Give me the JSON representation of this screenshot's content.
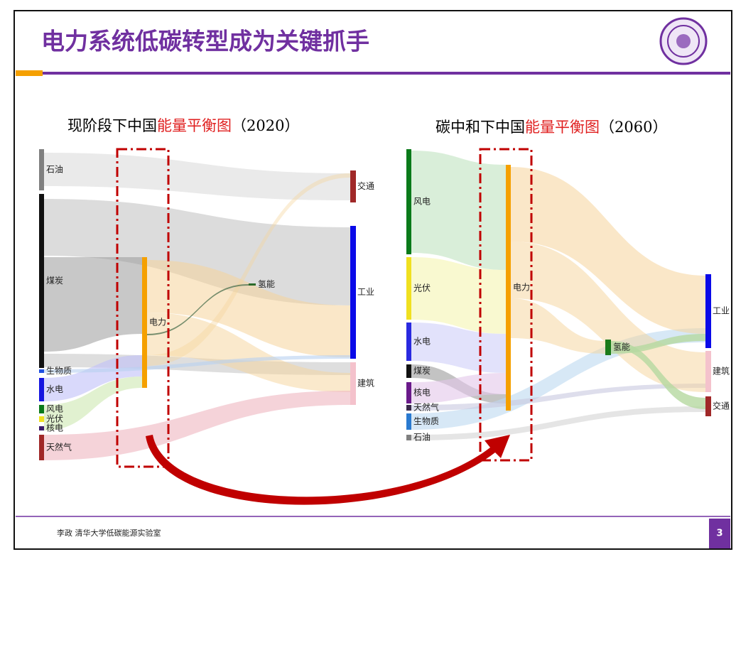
{
  "slide": {
    "title": "电力系统低碳转型成为关键抓手",
    "footer": "李政 清华大学低碳能源实验室",
    "page_number": "3"
  },
  "diagrams": [
    {
      "title": "现阶段下中国",
      "title_highlight": "能量平衡图",
      "title_year": "（2020）",
      "sources": [
        {
          "label": "石油",
          "color": "#808080"
        },
        {
          "label": "煤炭",
          "color": "#111111"
        },
        {
          "label": "生物质",
          "color": "#1f4fe0"
        },
        {
          "label": "水电",
          "color": "#1515e0"
        },
        {
          "label": "风电",
          "color": "#0a7a1a"
        },
        {
          "label": "光伏",
          "color": "#f0e020"
        },
        {
          "label": "核电",
          "color": "#3a1a6a"
        },
        {
          "label": "天然气",
          "color": "#a02828"
        }
      ],
      "middle": [
        {
          "label": "电力",
          "color": "#f5a000"
        },
        {
          "label": "氢能",
          "color": "#2a6a2a"
        }
      ],
      "sinks": [
        {
          "label": "交通",
          "color": "#a02828"
        },
        {
          "label": "工业",
          "color": "#0a0ae8"
        },
        {
          "label": "建筑",
          "color": "#f4c2cc"
        }
      ]
    },
    {
      "title": "碳中和下中国",
      "title_highlight": "能量平衡图",
      "title_year": "（2060）",
      "sources": [
        {
          "label": "风电",
          "color": "#0a7a1a"
        },
        {
          "label": "光伏",
          "color": "#f0e020"
        },
        {
          "label": "水电",
          "color": "#2a2ae0"
        },
        {
          "label": "煤炭",
          "color": "#111111"
        },
        {
          "label": "核电",
          "color": "#6a1a8a"
        },
        {
          "label": "天然气",
          "color": "#3a2a4a"
        },
        {
          "label": "生物质",
          "color": "#2a7ad0"
        },
        {
          "label": "石油",
          "color": "#808080"
        }
      ],
      "middle": [
        {
          "label": "电力",
          "color": "#f5a000"
        },
        {
          "label": "氢能",
          "color": "#1a7a1a"
        }
      ],
      "sinks": [
        {
          "label": "工业",
          "color": "#0a0ae8"
        },
        {
          "label": "建筑",
          "color": "#f4c2cc"
        },
        {
          "label": "交通",
          "color": "#a02828"
        }
      ]
    }
  ]
}
